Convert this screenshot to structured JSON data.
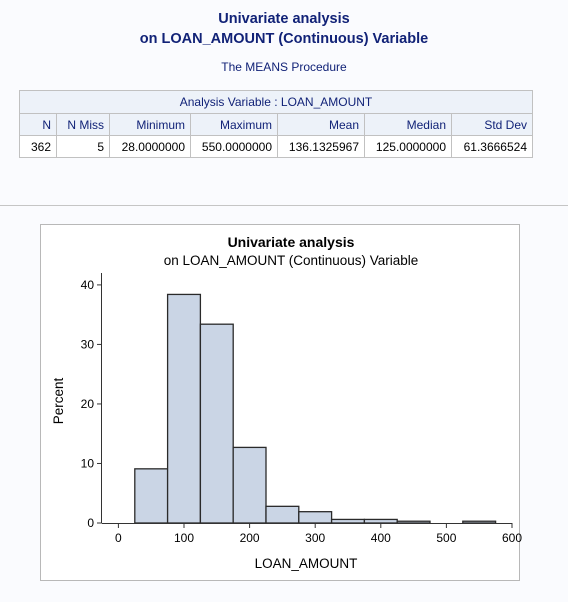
{
  "header": {
    "title_line1": "Univariate analysis",
    "title_line2": "on LOAN_AMOUNT (Continuous) Variable",
    "procedure": "The MEANS Procedure"
  },
  "stats_table": {
    "caption": "Analysis Variable : LOAN_AMOUNT",
    "columns": [
      "N",
      "N Miss",
      "Minimum",
      "Maximum",
      "Mean",
      "Median",
      "Std Dev"
    ],
    "row": [
      "362",
      "5",
      "28.0000000",
      "550.0000000",
      "136.1325967",
      "125.0000000",
      "61.3666524"
    ]
  },
  "chart_data": {
    "type": "bar",
    "title": "Univariate analysis",
    "subtitle": "on LOAN_AMOUNT (Continuous) Variable",
    "xlabel": "LOAN_AMOUNT",
    "ylabel": "Percent",
    "xlim": [
      -25,
      600
    ],
    "ylim": [
      0,
      42
    ],
    "xticks": [
      0,
      100,
      200,
      300,
      400,
      500,
      600
    ],
    "yticks": [
      0,
      10,
      20,
      30,
      40
    ],
    "bins": [
      {
        "start": 25,
        "end": 75,
        "value": 9.1
      },
      {
        "start": 75,
        "end": 125,
        "value": 38.4
      },
      {
        "start": 125,
        "end": 175,
        "value": 33.4
      },
      {
        "start": 175,
        "end": 225,
        "value": 12.7
      },
      {
        "start": 225,
        "end": 275,
        "value": 2.8
      },
      {
        "start": 275,
        "end": 325,
        "value": 1.9
      },
      {
        "start": 325,
        "end": 375,
        "value": 0.6
      },
      {
        "start": 375,
        "end": 425,
        "value": 0.6
      },
      {
        "start": 425,
        "end": 475,
        "value": 0.3
      },
      {
        "start": 475,
        "end": 525,
        "value": 0
      },
      {
        "start": 525,
        "end": 575,
        "value": 0.3
      }
    ],
    "bar_fill": "#cad5e5",
    "bar_stroke": "#2a2a2a",
    "grid": false
  },
  "colors": {
    "title": "#112277",
    "header_bg": "#edf2f9",
    "page_bg": "#fafbfe"
  }
}
